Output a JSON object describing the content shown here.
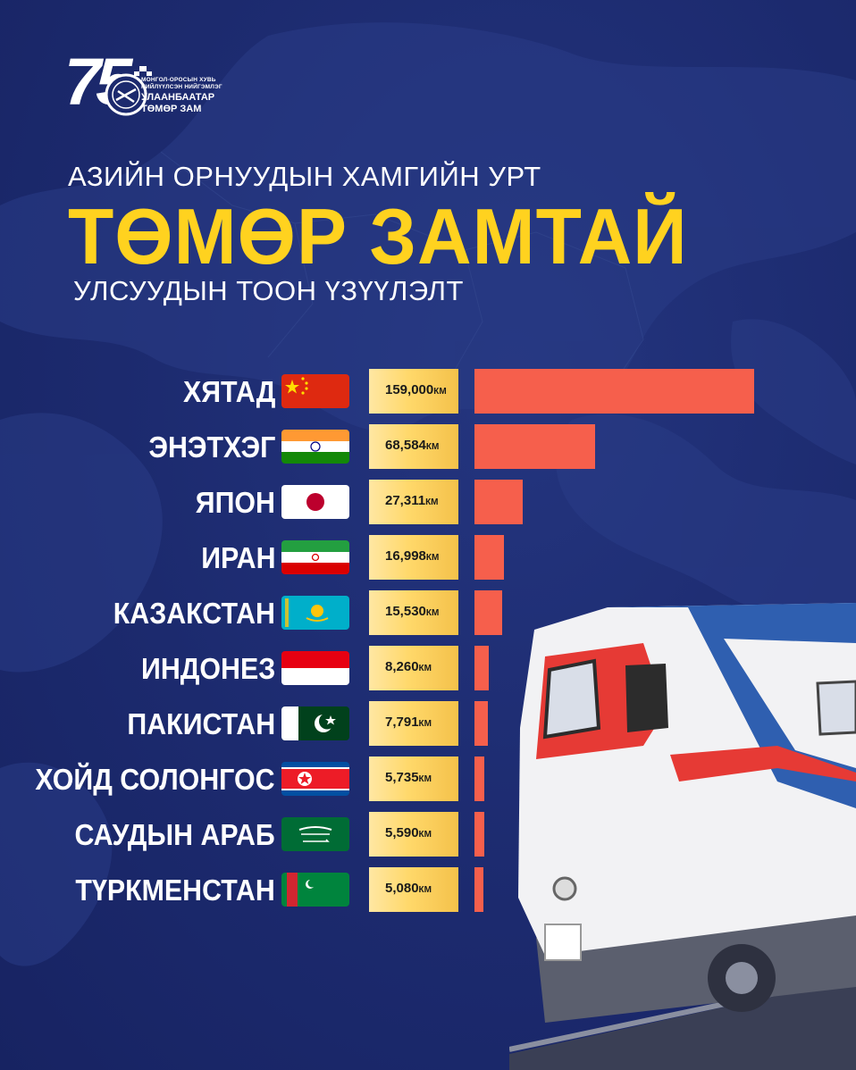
{
  "logo": {
    "number": "75",
    "line1": "МОНГОЛ-ОРОСЫН ХУВЬ",
    "line2": "НИЙЛҮҮЛСЭН НИЙГЭМЛЭГ",
    "line3": "УЛААНБААТАР",
    "line4": "ТӨМӨР ЗАМ"
  },
  "heading": {
    "top": "АЗИЙН  ОРНУУДЫН ХАМГИЙН УРТ",
    "main": "ТӨМӨР ЗАМТАЙ",
    "sub": "УЛСУУДЫН ТООН ҮЗҮҮЛЭЛТ"
  },
  "colors": {
    "background": "#1c2a6e",
    "title": "#ffd21f",
    "bar": "#f65f4c",
    "value_box": "#ffd86a"
  },
  "chart_data": {
    "type": "bar",
    "orientation": "horizontal",
    "unit": "КМ",
    "categories": [
      "ХЯТАД",
      "ЭНЭТХЭГ",
      "ЯПОН",
      "ИРАН",
      "КАЗАКСТАН",
      "ИНДОНЕЗ",
      "ПАКИСТАН",
      "ХОЙД СОЛОНГОС",
      "САУДЫН АРАБ",
      "ТҮРКМЕНСТАН"
    ],
    "values": [
      159000,
      68584,
      27311,
      16998,
      15530,
      8260,
      7791,
      5735,
      5590,
      5080
    ],
    "labels": [
      "159,000",
      "68,584",
      "27,311",
      "16,998",
      "15,530",
      "8,260",
      "7,791",
      "5,735",
      "5,590",
      "5,080"
    ],
    "flag_icons": [
      "china-flag-icon",
      "india-flag-icon",
      "japan-flag-icon",
      "iran-flag-icon",
      "kazakhstan-flag-icon",
      "indonesia-flag-icon",
      "pakistan-flag-icon",
      "north-korea-flag-icon",
      "saudi-arabia-flag-icon",
      "turkmenistan-flag-icon"
    ],
    "xlim": [
      0,
      159000
    ]
  }
}
